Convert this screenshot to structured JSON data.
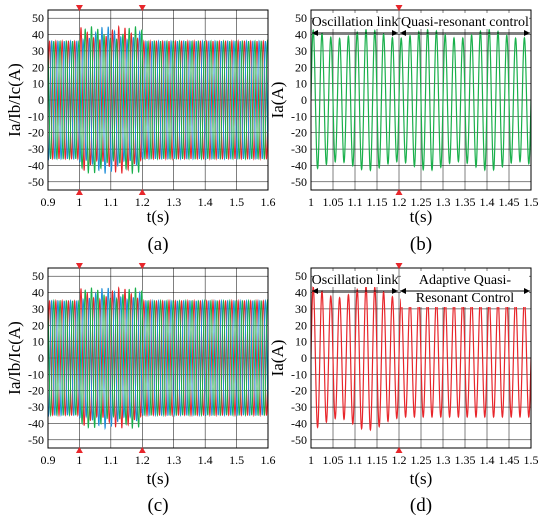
{
  "chart_data": [
    {
      "type": "line",
      "panel": "a",
      "caption": "(a)",
      "xlabel": "t(s)",
      "ylabel": "Ia/Ib/Ic(A)",
      "xlim": [
        0.9,
        1.6
      ],
      "ylim": [
        -55,
        55
      ],
      "x_ticks": [
        "0.9",
        "1",
        "1.1",
        "1.2",
        "1.3",
        "1.4",
        "1.5",
        "1.6"
      ],
      "y_ticks": [
        "50",
        "40",
        "30",
        "20",
        "10",
        "0",
        "-10",
        "-20",
        "-30",
        "-40",
        "-50"
      ],
      "grid": true,
      "markers_x": [
        1.0,
        1.2
      ],
      "series": [
        {
          "color": "#e8262b",
          "amplitude": 36,
          "peak_amplitude": 45,
          "phase_deg": 0,
          "frequency_hz": 50
        },
        {
          "color": "#1f8fd9",
          "amplitude": 36,
          "peak_amplitude": 44,
          "phase_deg": -120,
          "frequency_hz": 50
        },
        {
          "color": "#19b04b",
          "amplitude": 36,
          "peak_amplitude": 42,
          "phase_deg": 120,
          "frequency_hz": 50
        }
      ],
      "disturbance": {
        "start": 1.0,
        "end": 1.2,
        "extra_amplitude": 9
      }
    },
    {
      "type": "line",
      "panel": "b",
      "caption": "(b)",
      "xlabel": "t(s)",
      "ylabel": "Ia(A)",
      "xlim": [
        1.0,
        1.5
      ],
      "ylim": [
        -55,
        55
      ],
      "x_ticks": [
        "1",
        "1.05",
        "1.1",
        "1.15",
        "1.2",
        "1.25",
        "1.3",
        "1.35",
        "1.4",
        "1.45",
        "1.5"
      ],
      "y_ticks": [
        "50",
        "40",
        "30",
        "20",
        "10",
        "0",
        "-10",
        "-20",
        "-30",
        "-40",
        "-50"
      ],
      "grid": true,
      "markers_x": [
        1.2
      ],
      "annotations": [
        "Oscillation link",
        "Quasi-resonant control"
      ],
      "series": [
        {
          "color": "#19b04b",
          "amplitude": 37,
          "peak_amplitude": 44,
          "phase_deg": 0,
          "frequency_hz": 50
        }
      ],
      "disturbance": {
        "start": 1.0,
        "end": 1.5,
        "extra_amplitude": 6
      }
    },
    {
      "type": "line",
      "panel": "c",
      "caption": "(c)",
      "xlabel": "t(s)",
      "ylabel": "Ia/Ib/Ic(A)",
      "xlim": [
        0.9,
        1.6
      ],
      "ylim": [
        -55,
        55
      ],
      "x_ticks": [
        "0.9",
        "1",
        "1.1",
        "1.2",
        "1.3",
        "1.4",
        "1.5",
        "1.6"
      ],
      "y_ticks": [
        "50",
        "40",
        "30",
        "20",
        "10",
        "0",
        "-10",
        "-20",
        "-30",
        "-40",
        "-50"
      ],
      "grid": true,
      "markers_x": [
        1.0,
        1.2
      ],
      "series": [
        {
          "color": "#e8262b",
          "amplitude": 35,
          "peak_amplitude": 45,
          "phase_deg": 0,
          "frequency_hz": 50
        },
        {
          "color": "#1f8fd9",
          "amplitude": 35,
          "peak_amplitude": 43,
          "phase_deg": -120,
          "frequency_hz": 50
        },
        {
          "color": "#19b04b",
          "amplitude": 35,
          "peak_amplitude": 42,
          "phase_deg": 120,
          "frequency_hz": 50
        }
      ],
      "disturbance": {
        "start": 1.0,
        "end": 1.2,
        "extra_amplitude": 8
      }
    },
    {
      "type": "line",
      "panel": "d",
      "caption": "(d)",
      "xlabel": "t(s)",
      "ylabel": "Ia(A)",
      "xlim": [
        1.0,
        1.5
      ],
      "ylim": [
        -55,
        55
      ],
      "x_ticks": [
        "1",
        "1.05",
        "1.1",
        "1.15",
        "1.2",
        "1.25",
        "1.3",
        "1.35",
        "1.4",
        "1.45",
        "1.5"
      ],
      "y_ticks": [
        "50",
        "40",
        "30",
        "20",
        "10",
        "0",
        "-10",
        "-20",
        "-30",
        "-40",
        "-50"
      ],
      "grid": true,
      "markers_x": [
        1.2
      ],
      "annotations": [
        "Oscillation link",
        "Adaptive Quasi-",
        "Resonant Control"
      ],
      "series": [
        {
          "color": "#e8262b",
          "amplitude": 36,
          "peak_amplitude": 44,
          "phase_deg": 0,
          "frequency_hz": 50
        }
      ],
      "disturbance": {
        "start": 1.0,
        "end": 1.2,
        "extra_amplitude": 8
      }
    }
  ],
  "colors": {
    "grid": "#000000",
    "marker": "#e8262b",
    "frame": "#000000"
  }
}
